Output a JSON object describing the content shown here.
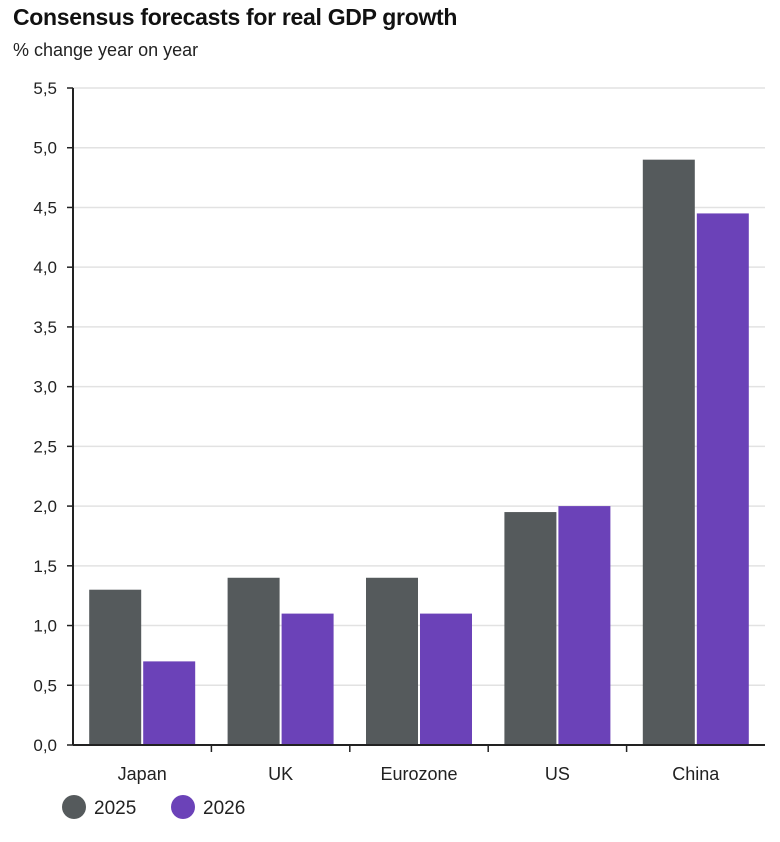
{
  "chart_data": {
    "type": "bar",
    "title": "Consensus forecasts for real GDP growth",
    "subtitle": "% change year on year",
    "categories": [
      "Japan",
      "UK",
      "Eurozone",
      "US",
      "China"
    ],
    "series": [
      {
        "name": "2025",
        "color": "#555a5c",
        "values": [
          1.3,
          1.4,
          1.4,
          1.95,
          4.9
        ]
      },
      {
        "name": "2026",
        "color": "#6b42b8",
        "values": [
          0.7,
          1.1,
          1.1,
          2.0,
          4.45
        ]
      }
    ],
    "ylim": [
      0,
      5.5
    ],
    "yticks": [
      "0,0",
      "0,5",
      "1,0",
      "1,5",
      "2,0",
      "2,5",
      "3,0",
      "3,5",
      "4,0",
      "4,5",
      "5,0",
      "5,5"
    ],
    "grid": true,
    "legend": "bottom-left",
    "xlabel": "",
    "ylabel": ""
  }
}
